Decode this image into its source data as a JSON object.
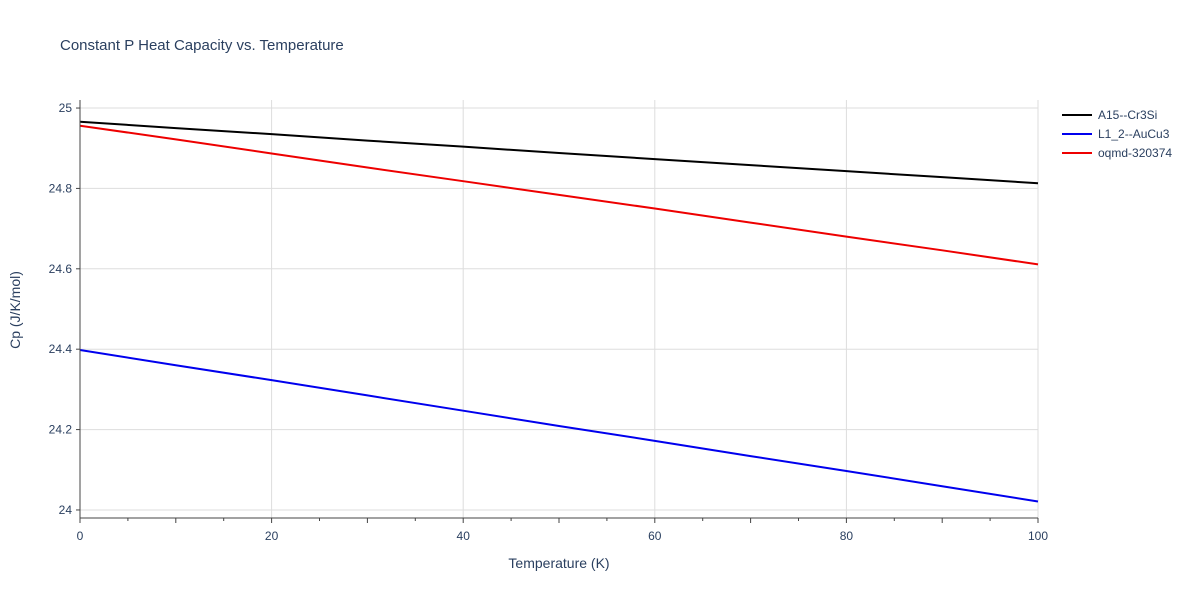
{
  "chart_data": {
    "type": "line",
    "title": "Constant P Heat Capacity vs. Temperature",
    "xlabel": "Temperature (K)",
    "ylabel": "Cp (J/K/mol)",
    "xlim": [
      0,
      100
    ],
    "ylim": [
      23.98,
      25.02
    ],
    "xticks": [
      0,
      20,
      40,
      60,
      80,
      100
    ],
    "yticks": [
      24,
      24.2,
      24.4,
      24.6,
      24.8,
      25
    ],
    "ytick_labels": [
      "24",
      "24.2",
      "24.4",
      "24.6",
      "24.8",
      "25"
    ],
    "grid": true,
    "legend_position": "top-right",
    "series": [
      {
        "name": "A15--Cr3Si",
        "color": "#000000",
        "x": [
          0,
          10,
          20,
          30,
          40,
          50,
          60,
          70,
          80,
          90,
          100
        ],
        "y": [
          24.966,
          24.95,
          24.935,
          24.919,
          24.904,
          24.888,
          24.873,
          24.858,
          24.843,
          24.828,
          24.813
        ]
      },
      {
        "name": "L1_2--AuCu3",
        "color": "#0000ee",
        "x": [
          0,
          10,
          20,
          30,
          40,
          50,
          60,
          70,
          80,
          90,
          100
        ],
        "y": [
          24.398,
          24.36,
          24.323,
          24.285,
          24.247,
          24.209,
          24.172,
          24.134,
          24.097,
          24.059,
          24.021
        ]
      },
      {
        "name": "oqmd-320374",
        "color": "#ee0000",
        "x": [
          0,
          10,
          20,
          30,
          40,
          50,
          60,
          70,
          80,
          90,
          100
        ],
        "y": [
          24.956,
          24.922,
          24.887,
          24.852,
          24.818,
          24.784,
          24.75,
          24.715,
          24.68,
          24.646,
          24.611
        ]
      }
    ]
  }
}
